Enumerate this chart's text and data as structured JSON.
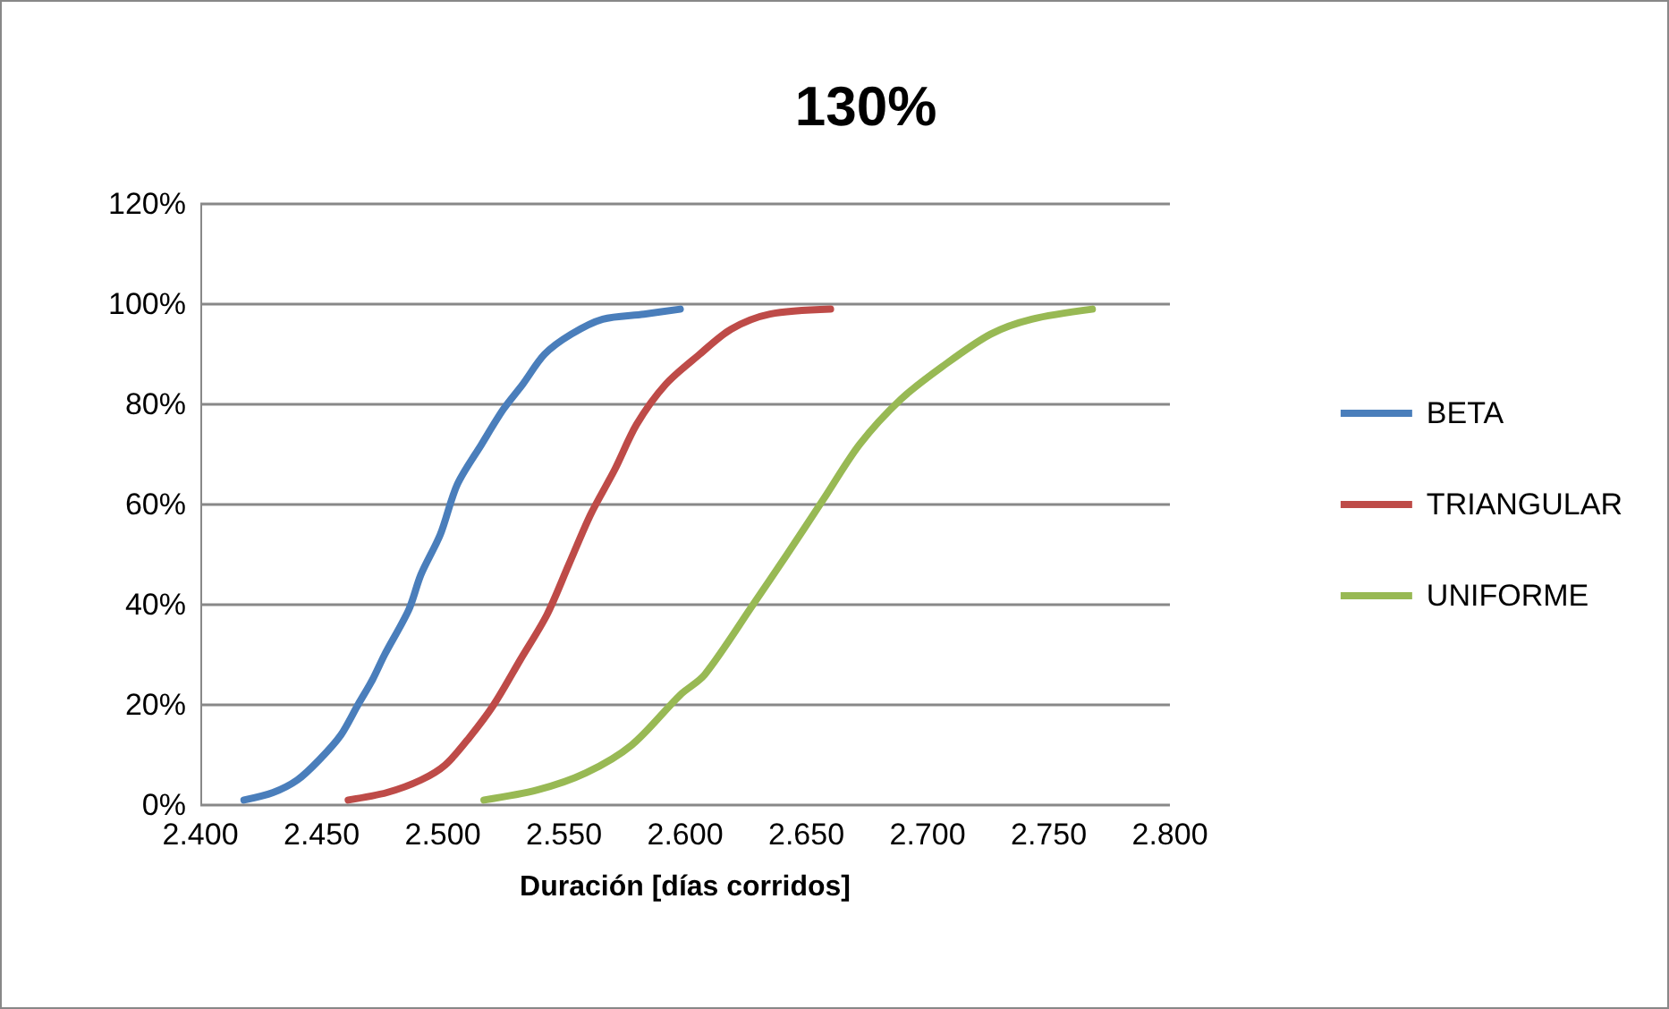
{
  "chart_data": {
    "type": "line",
    "title": "130%",
    "xlabel": "Duración [días corridos]",
    "xlim": [
      2400,
      2800
    ],
    "xticks": [
      {
        "value": 2400,
        "label": "2.400"
      },
      {
        "value": 2450,
        "label": "2.450"
      },
      {
        "value": 2500,
        "label": "2.500"
      },
      {
        "value": 2550,
        "label": "2.550"
      },
      {
        "value": 2600,
        "label": "2.600"
      },
      {
        "value": 2650,
        "label": "2.650"
      },
      {
        "value": 2700,
        "label": "2.700"
      },
      {
        "value": 2750,
        "label": "2.750"
      },
      {
        "value": 2800,
        "label": "2.800"
      }
    ],
    "ylim": [
      0,
      120
    ],
    "yticks": [
      {
        "value": 0,
        "label": "0%"
      },
      {
        "value": 20,
        "label": "20%"
      },
      {
        "value": 40,
        "label": "40%"
      },
      {
        "value": 60,
        "label": "60%"
      },
      {
        "value": 80,
        "label": "80%"
      },
      {
        "value": 100,
        "label": "100%"
      },
      {
        "value": 120,
        "label": "120%"
      }
    ],
    "grid": "y",
    "legend": "right",
    "marker": "none",
    "line_style": "solid",
    "series": [
      {
        "name": "BETA",
        "color": "#4a7ebb",
        "x": [
          2418,
          2430,
          2440,
          2449,
          2458,
          2465,
          2471,
          2476,
          2486,
          2491,
          2499,
          2506,
          2516,
          2525,
          2533,
          2542,
          2553,
          2566,
          2583,
          2598
        ],
        "values": [
          1,
          2.5,
          5,
          9,
          14,
          20,
          25,
          30,
          39,
          46,
          54,
          64,
          72,
          79,
          84,
          90,
          94,
          97,
          98,
          99
        ]
      },
      {
        "name": "TRIANGULAR",
        "color": "#be4b48",
        "x": [
          2461,
          2477,
          2491,
          2501,
          2511,
          2521,
          2532,
          2543,
          2552,
          2561,
          2571,
          2580,
          2592,
          2606,
          2619,
          2635,
          2660
        ],
        "values": [
          1,
          2.5,
          5,
          8,
          13.5,
          20,
          29,
          38,
          48,
          58,
          67,
          76,
          84,
          90,
          95,
          98,
          99
        ]
      },
      {
        "name": "UNIFORME",
        "color": "#98b954",
        "x": [
          2517,
          2539,
          2559,
          2578,
          2598,
          2608,
          2628,
          2642,
          2657,
          2672,
          2689,
          2706,
          2726,
          2743,
          2768
        ],
        "values": [
          1,
          3,
          6.4,
          12,
          22,
          26,
          40,
          50,
          61,
          72,
          81,
          87.5,
          94,
          97,
          99
        ]
      }
    ]
  }
}
